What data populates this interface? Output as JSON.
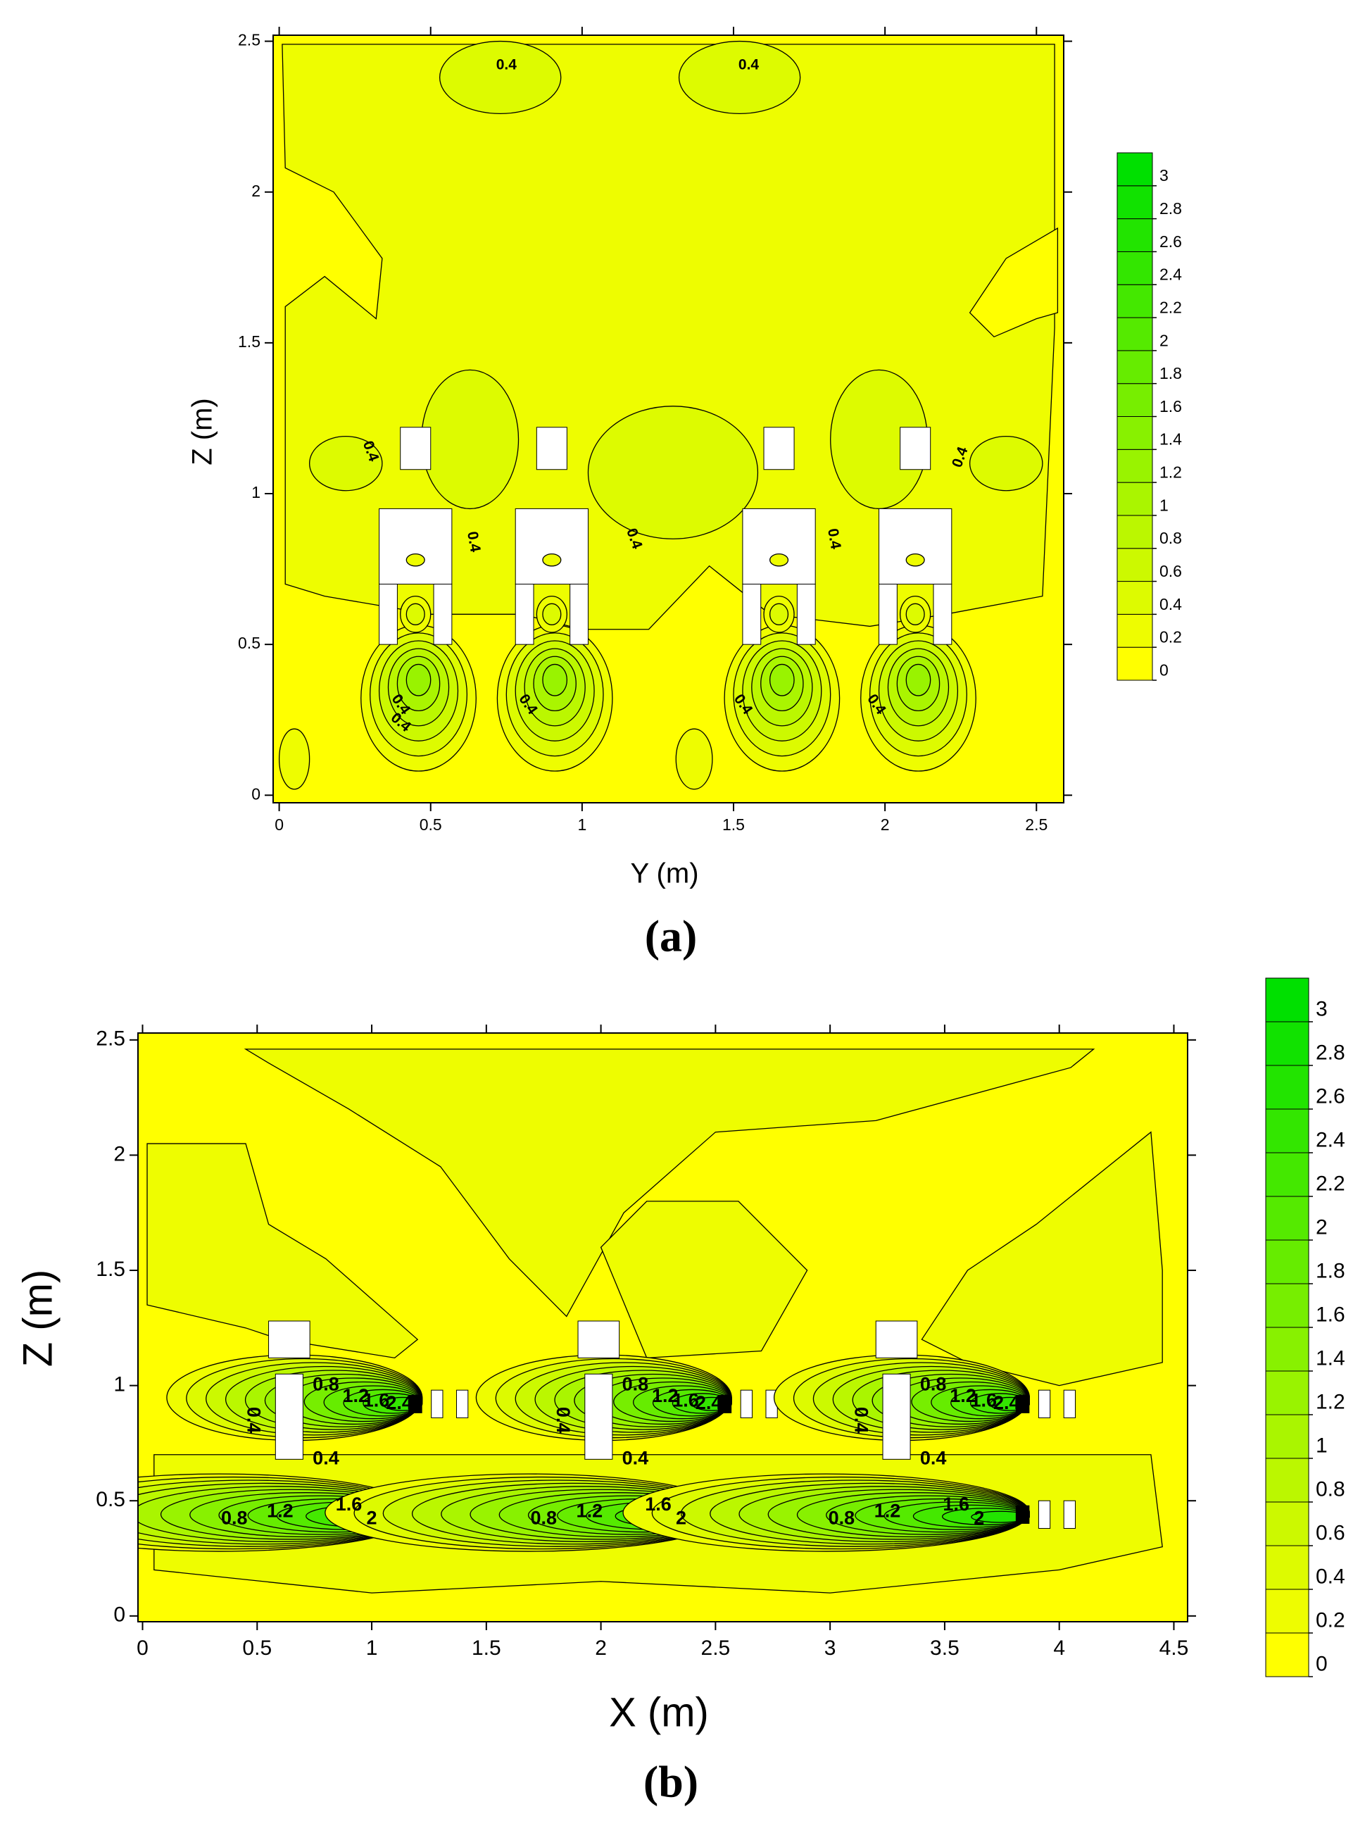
{
  "chart_data": [
    {
      "type": "contour",
      "caption": "(a)",
      "xlabel": "Y (m)",
      "ylabel": "Z (m)",
      "xlim": [
        -0.02,
        2.59
      ],
      "ylim": [
        -0.025,
        2.52
      ],
      "xticks": [
        0,
        0.5,
        1,
        1.5,
        2,
        2.5
      ],
      "yticks": [
        0,
        0.5,
        1,
        1.5,
        2,
        2.5
      ],
      "levels": [
        0,
        0.2,
        0.4,
        0.6,
        0.8,
        1,
        1.2,
        1.4,
        1.6,
        1.8,
        2,
        2.2,
        2.4,
        2.6,
        2.8,
        3,
        3.2
      ],
      "colorbar_ticks": [
        0,
        0.2,
        0.4,
        0.6,
        0.8,
        1,
        1.2,
        1.4,
        1.6,
        1.8,
        2,
        2.2,
        2.4,
        2.6,
        2.8,
        3
      ],
      "colormap": [
        "#ffff00",
        "#00e000"
      ],
      "contour_labels": [
        0.4,
        0.4,
        0.4,
        0.4,
        0.4,
        0.4,
        0.4,
        0.4,
        0.4,
        0.4,
        0.4,
        0.4
      ]
    },
    {
      "type": "contour",
      "caption": "(b)",
      "xlabel": "X (m)",
      "ylabel": "Z (m)",
      "xlim": [
        -0.02,
        4.56
      ],
      "ylim": [
        -0.025,
        2.53
      ],
      "xticks": [
        0,
        0.5,
        1,
        1.5,
        2,
        2.5,
        3,
        3.5,
        4,
        4.5
      ],
      "yticks": [
        0,
        0.5,
        1,
        1.5,
        2,
        2.5
      ],
      "levels": [
        0,
        0.2,
        0.4,
        0.6,
        0.8,
        1,
        1.2,
        1.4,
        1.6,
        1.8,
        2,
        2.2,
        2.4,
        2.6,
        2.8,
        3,
        3.2
      ],
      "colorbar_ticks": [
        0,
        0.2,
        0.4,
        0.6,
        0.8,
        1,
        1.2,
        1.4,
        1.6,
        1.8,
        2,
        2.2,
        2.4,
        2.6,
        2.8,
        3
      ],
      "colormap": [
        "#ffff00",
        "#00e000"
      ],
      "contour_labels": [
        0.8,
        1.2,
        1.6,
        2.4,
        0.4,
        0.4,
        0.8,
        1.2,
        1.6,
        2,
        0.8,
        1.2,
        1.6,
        2.4,
        0.4,
        0.4,
        0.8,
        1.2,
        1.6,
        2,
        0.8,
        1.2,
        1.6,
        2.4,
        0.4,
        0.4,
        0.8,
        1.2,
        1.6,
        2
      ]
    }
  ]
}
